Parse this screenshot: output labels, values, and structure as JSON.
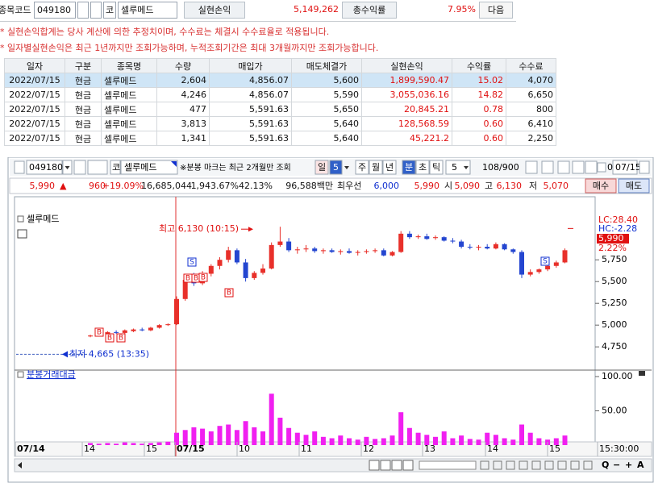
{
  "top": {
    "code_label": "종목코드",
    "code": "049180",
    "market": "코",
    "name": "셀루메드",
    "profit_label": "실현손익",
    "profit": "5,149,262",
    "return_label": "총수익률",
    "return": "7.95%",
    "next": "다음",
    "notes": [
      "* 실현손익합계는 당사 계산에 의한 추정치이며, 수수료는 체결시 수수료율로 적용됩니다.",
      "* 일자별실현손익은 최근 1년까지만 조회가능하며, 누적조회기간은 최대 3개월까지만 조회가능합니다."
    ],
    "table": {
      "headers": [
        "일자",
        "구분",
        "종목명",
        "수량",
        "매입가",
        "매도체결가",
        "실현손익",
        "수익률",
        "수수료"
      ],
      "rows": [
        [
          "2022/07/15",
          "현금",
          "셀루메드",
          "2,604",
          "4,856.07",
          "5,600",
          "1,899,590.47",
          "15.02",
          "4,070"
        ],
        [
          "2022/07/15",
          "현금",
          "셀루메드",
          "4,246",
          "4,856.07",
          "5,590",
          "3,055,036.16",
          "14.82",
          "6,650"
        ],
        [
          "2022/07/15",
          "현금",
          "셀루메드",
          "477",
          "5,591.63",
          "5,650",
          "20,845.21",
          "0.78",
          "800"
        ],
        [
          "2022/07/15",
          "현금",
          "셀루메드",
          "3,813",
          "5,591.63",
          "5,640",
          "128,568.59",
          "0.60",
          "6,410"
        ],
        [
          "2022/07/15",
          "현금",
          "셀루메드",
          "1,341",
          "5,591.63",
          "5,640",
          "45,221.2",
          "0.60",
          "2,250"
        ]
      ]
    }
  },
  "chart_panel": {
    "toolbar": {
      "code": "049180",
      "market": "코",
      "name": "셀루메드",
      "note": "※분봉 마크는 최근 2개월만 조회",
      "periods": [
        "일",
        "주",
        "월",
        "년",
        "분",
        "초",
        "틱"
      ],
      "day_n": "5",
      "interval": "5",
      "count": "108",
      "max": "/900",
      "check": "0",
      "date": "07/15"
    },
    "quote": [
      {
        "text": "5,990",
        "color": "#e01010"
      },
      {
        "text": "▲",
        "color": "#e01010"
      },
      {
        "text": "960",
        "color": "#e01010"
      },
      {
        "text": "+19.09%",
        "color": "#e01010"
      },
      {
        "text": "16,685,044",
        "color": "#111111"
      },
      {
        "text": "1,943.67%",
        "color": "#111111"
      },
      {
        "text": "42.13%",
        "color": "#111111"
      },
      {
        "text": "96,588백만",
        "color": "#111111"
      },
      {
        "text": "최우선",
        "color": "#111111"
      },
      {
        "text": "6,000",
        "color": "#1030d0"
      },
      {
        "text": "5,990",
        "color": "#e01010"
      },
      {
        "text": "시",
        "color": "#111111"
      },
      {
        "text": "5,090",
        "color": "#e01010"
      },
      {
        "text": "고",
        "color": "#111111"
      },
      {
        "text": "6,130",
        "color": "#e01010"
      },
      {
        "text": "저",
        "color": "#111111"
      },
      {
        "text": "5,070",
        "color": "#e01010"
      }
    ],
    "buy": "매수",
    "sell": "매도",
    "chart": {
      "type": "candlestick",
      "series_label": "셀루메드",
      "up_color": "#e8302a",
      "down_color": "#2446d0",
      "ylim": [
        4520,
        6280
      ],
      "yticks": [
        {
          "value": 5750,
          "label": "5,750"
        },
        {
          "value": 5500,
          "label": "5,500"
        },
        {
          "value": 5250,
          "label": "5,250"
        },
        {
          "value": 5000,
          "label": "5,000"
        },
        {
          "value": 4750,
          "label": "4,750"
        }
      ],
      "side_labels": [
        {
          "text": "LC:28.40",
          "color": "#e01010"
        },
        {
          "text": "HC:-2.28",
          "color": "#1030d0"
        },
        {
          "text": "5,990",
          "color": "#ffffff"
        },
        {
          "text": "2.22%",
          "color": "#e01010"
        }
      ],
      "annotations": {
        "high": {
          "text": "최고 6,130 (10:15)",
          "value": 6130
        },
        "low": {
          "text": "최저 4,665 (13:35)",
          "value": 4665
        }
      },
      "marks": {
        "buy": "B",
        "sell": "S"
      },
      "open": [
        4870,
        4880,
        4900,
        4920,
        4910,
        4930,
        4950,
        4940,
        4970,
        5000,
        5010,
        5300,
        5500,
        5480,
        5590,
        5680,
        5750,
        5860,
        5720,
        5540,
        5600,
        5650,
        5920,
        5960,
        5860,
        5870,
        5880,
        5850,
        5860,
        5840,
        5850,
        5830,
        5840,
        5850,
        5860,
        5800,
        5840,
        6050,
        6010,
        6020,
        6000,
        6010,
        5970,
        5960,
        5900,
        5890,
        5900,
        5880,
        5930,
        5870,
        5840,
        5580,
        5610,
        5640,
        5680,
        5720
      ],
      "high": [
        4890,
        4920,
        4930,
        4940,
        4950,
        4960,
        4970,
        4980,
        5010,
        5020,
        5330,
        5560,
        5600,
        5620,
        5700,
        5780,
        5900,
        5880,
        5760,
        5620,
        5700,
        5950,
        6130,
        6000,
        5900,
        5920,
        5900,
        5880,
        5880,
        5870,
        5880,
        5860,
        5870,
        5880,
        5880,
        5850,
        6080,
        6080,
        6040,
        6050,
        6030,
        6020,
        6000,
        5980,
        5930,
        5920,
        5930,
        5950,
        5940,
        5880,
        5860,
        5640,
        5650,
        5700,
        5740,
        5880
      ],
      "low": [
        4860,
        4870,
        4890,
        4900,
        4900,
        4920,
        4930,
        4930,
        4960,
        4990,
        5000,
        5280,
        5450,
        5460,
        5560,
        5640,
        5720,
        5700,
        5500,
        5520,
        5580,
        5640,
        5900,
        5840,
        5820,
        5840,
        5830,
        5820,
        5830,
        5810,
        5820,
        5800,
        5820,
        5830,
        5790,
        5790,
        5830,
        5990,
        5990,
        5980,
        5980,
        5960,
        5940,
        5880,
        5870,
        5860,
        5870,
        5870,
        5860,
        5820,
        5540,
        5560,
        5590,
        5620,
        5660,
        5710
      ],
      "close": [
        4880,
        4910,
        4920,
        4910,
        4940,
        4950,
        4940,
        4970,
        5000,
        5010,
        5300,
        5520,
        5480,
        5590,
        5680,
        5750,
        5860,
        5720,
        5540,
        5600,
        5650,
        5920,
        5960,
        5860,
        5870,
        5880,
        5850,
        5860,
        5840,
        5850,
        5830,
        5840,
        5850,
        5860,
        5800,
        5840,
        6050,
        6010,
        6020,
        5990,
        6010,
        5970,
        5960,
        5900,
        5890,
        5900,
        5880,
        5930,
        5870,
        5840,
        5580,
        5610,
        5640,
        5680,
        5720,
        5860
      ],
      "volume_label": "분봉거래대금",
      "volume_color": "#f020f0",
      "vol_ylim": [
        0,
        110
      ],
      "vol_yticks": [
        {
          "value": 100,
          "label": "100.00"
        },
        {
          "value": 50,
          "label": "50.00"
        }
      ],
      "volume": [
        3,
        2,
        3,
        2,
        4,
        3,
        2,
        3,
        4,
        5,
        18,
        22,
        26,
        24,
        20,
        28,
        30,
        22,
        35,
        26,
        20,
        75,
        40,
        25,
        18,
        15,
        20,
        12,
        10,
        14,
        10,
        8,
        12,
        9,
        10,
        14,
        48,
        25,
        18,
        15,
        12,
        20,
        10,
        14,
        9,
        8,
        18,
        15,
        10,
        8,
        30,
        18,
        10,
        8,
        10,
        14
      ],
      "time_labels": [
        "07/14",
        "14",
        "15",
        "07/15",
        "10",
        "11",
        "12",
        "13",
        "14",
        "15",
        "15:30:00"
      ]
    },
    "zoom": [
      "Q",
      "−",
      "+",
      "A"
    ]
  }
}
